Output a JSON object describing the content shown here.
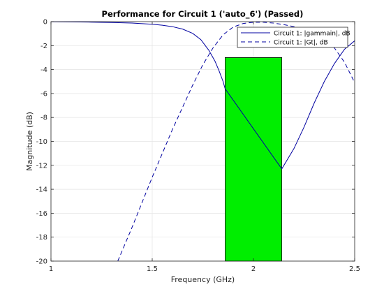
{
  "chart_data": {
    "type": "line",
    "title": "Performance for Circuit 1 ('auto_6')  (Passed)",
    "xlabel": "Frequency (GHz)",
    "ylabel": "Magnitude (dB)",
    "xlim": [
      1,
      2.5
    ],
    "ylim": [
      -20,
      0
    ],
    "xticks": [
      1,
      1.5,
      2,
      2.5
    ],
    "xtick_labels": [
      "1",
      "1.5",
      "2",
      "2.5"
    ],
    "yticks": [
      0,
      -2,
      -4,
      -6,
      -8,
      -10,
      -12,
      -14,
      -16,
      -18,
      -20
    ],
    "ytick_labels": [
      "0",
      "-2",
      "-4",
      "-6",
      "-8",
      "-10",
      "-12",
      "-14",
      "-16",
      "-18",
      "-20"
    ],
    "grid": true,
    "legend_position": "top-right",
    "series": [
      {
        "name": "Circuit 1: |gammain|, dB",
        "style": "solid",
        "color": "#0000a0",
        "x": [
          1.0,
          1.1,
          1.2,
          1.3,
          1.4,
          1.5,
          1.55,
          1.6,
          1.65,
          1.7,
          1.74,
          1.78,
          1.81,
          1.83,
          1.85,
          1.86,
          2.14,
          2.2,
          2.25,
          2.3,
          2.35,
          2.4,
          2.45,
          2.5
        ],
        "y": [
          -0.01,
          -0.02,
          -0.04,
          -0.07,
          -0.12,
          -0.22,
          -0.3,
          -0.42,
          -0.62,
          -0.98,
          -1.5,
          -2.4,
          -3.3,
          -4.1,
          -5.0,
          -5.6,
          -12.3,
          -10.6,
          -8.8,
          -6.8,
          -5.0,
          -3.5,
          -2.3,
          -1.6
        ]
      },
      {
        "name": "Circuit 1: |Gt|, dB",
        "style": "dashed",
        "color": "#0000a0",
        "x": [
          1.33,
          1.4,
          1.5,
          1.6,
          1.7,
          1.75,
          1.8,
          1.85,
          1.9,
          1.95,
          2.0,
          2.05,
          2.1,
          2.15,
          2.2,
          2.25,
          2.3,
          2.35,
          2.4,
          2.45,
          2.5
        ],
        "y": [
          -20,
          -17.2,
          -13.0,
          -9.0,
          -5.3,
          -3.6,
          -2.2,
          -1.1,
          -0.45,
          -0.15,
          -0.05,
          -0.05,
          -0.12,
          -0.25,
          -0.42,
          -0.65,
          -0.95,
          -1.4,
          -2.2,
          -3.4,
          -5.1
        ]
      }
    ],
    "goal_region": {
      "label": "",
      "color": "#00ee00",
      "x_range": [
        1.86,
        2.14
      ],
      "y_range": [
        -20,
        -3
      ]
    }
  }
}
